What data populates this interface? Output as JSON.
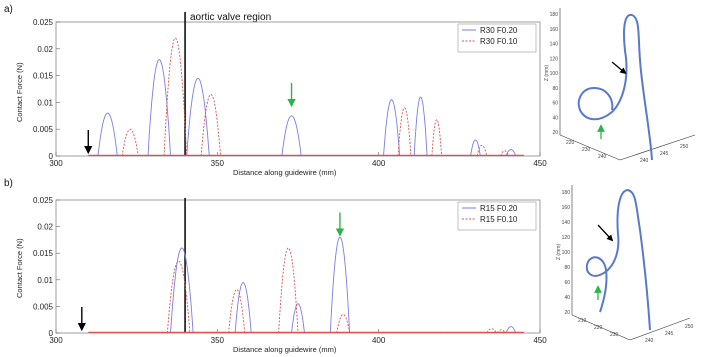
{
  "colors": {
    "blue": "#7b7ee0",
    "red": "#e05050",
    "black": "#000000",
    "green": "#2db34a",
    "catheter": "#5a79c8"
  },
  "annotations": {
    "aortic_label": "aortic valve region",
    "aortic_x": 340
  },
  "panels": [
    {
      "id": "a",
      "label": "a)",
      "xlabel": "Distance along guidewire (mm)",
      "ylabel": "Contact Force (N)",
      "black_arrow_x": 310,
      "green_arrow_x": 373,
      "tube": {
        "x_ticks": [
          "220",
          "230",
          "240"
        ],
        "y_ticks": [
          "240",
          "245",
          "250"
        ],
        "z_ticks": [
          "180",
          "160",
          "140",
          "120",
          "100",
          "80",
          "60",
          "40",
          "20"
        ],
        "z_label": "Z (mm)"
      }
    },
    {
      "id": "b",
      "label": "b)",
      "xlabel": "Distance along guidewire (mm)",
      "ylabel": "Contact Force (N)",
      "black_arrow_x": 308,
      "green_arrow_x": 388,
      "tube": {
        "x_ticks": [
          "210",
          "220",
          "230"
        ],
        "y_ticks": [
          "240",
          "245",
          "250"
        ],
        "z_ticks": [
          "180",
          "160",
          "140",
          "120",
          "100",
          "80",
          "60",
          "40",
          "20"
        ],
        "z_label": "Z (mm)"
      }
    }
  ],
  "chart_data": [
    {
      "type": "line",
      "xlim": [
        300,
        450
      ],
      "ylim": [
        0,
        0.025
      ],
      "x_ticks": [
        300,
        350,
        400,
        450
      ],
      "y_ticks": [
        0,
        0.005,
        0.01,
        0.015,
        0.02,
        0.025
      ],
      "series": [
        {
          "name": "R30 F0.20",
          "style": "solid",
          "peaks": [
            {
              "x": 316,
              "y": 0.008,
              "w": 3
            },
            {
              "x": 332,
              "y": 0.018,
              "w": 3.5
            },
            {
              "x": 344,
              "y": 0.0145,
              "w": 3.5
            },
            {
              "x": 373,
              "y": 0.0075,
              "w": 3
            },
            {
              "x": 404,
              "y": 0.0105,
              "w": 2.5
            },
            {
              "x": 413,
              "y": 0.011,
              "w": 2
            },
            {
              "x": 430,
              "y": 0.003,
              "w": 1.5
            },
            {
              "x": 441,
              "y": 0.0012,
              "w": 1.5
            }
          ]
        },
        {
          "name": "R30 F0.10",
          "style": "dashed",
          "peaks": [
            {
              "x": 323,
              "y": 0.005,
              "w": 2.5
            },
            {
              "x": 337,
              "y": 0.022,
              "w": 3.5
            },
            {
              "x": 348,
              "y": 0.0115,
              "w": 3
            },
            {
              "x": 408,
              "y": 0.009,
              "w": 2
            },
            {
              "x": 418,
              "y": 0.0068,
              "w": 1.5
            },
            {
              "x": 432,
              "y": 0.002,
              "w": 1.5
            },
            {
              "x": 439,
              "y": 0.001,
              "w": 1.2
            }
          ]
        }
      ]
    },
    {
      "type": "line",
      "xlim": [
        300,
        450
      ],
      "ylim": [
        0,
        0.025
      ],
      "x_ticks": [
        300,
        350,
        400,
        450
      ],
      "y_ticks": [
        0,
        0.005,
        0.01,
        0.015,
        0.02,
        0.025
      ],
      "series": [
        {
          "name": "R15 F0.20",
          "style": "solid",
          "peaks": [
            {
              "x": 339,
              "y": 0.016,
              "w": 3.5
            },
            {
              "x": 358,
              "y": 0.0095,
              "w": 2.5
            },
            {
              "x": 375,
              "y": 0.0055,
              "w": 2
            },
            {
              "x": 388,
              "y": 0.018,
              "w": 3
            },
            {
              "x": 441,
              "y": 0.0012,
              "w": 1.5
            }
          ]
        },
        {
          "name": "R15 F0.10",
          "style": "dashed",
          "peaks": [
            {
              "x": 338,
              "y": 0.0135,
              "w": 3.5
            },
            {
              "x": 356,
              "y": 0.0082,
              "w": 2.5
            },
            {
              "x": 372,
              "y": 0.016,
              "w": 3
            },
            {
              "x": 389,
              "y": 0.0035,
              "w": 2
            },
            {
              "x": 435,
              "y": 0.0008,
              "w": 1.5
            },
            {
              "x": 438,
              "y": 0.0006,
              "w": 1.2
            }
          ]
        }
      ]
    }
  ]
}
